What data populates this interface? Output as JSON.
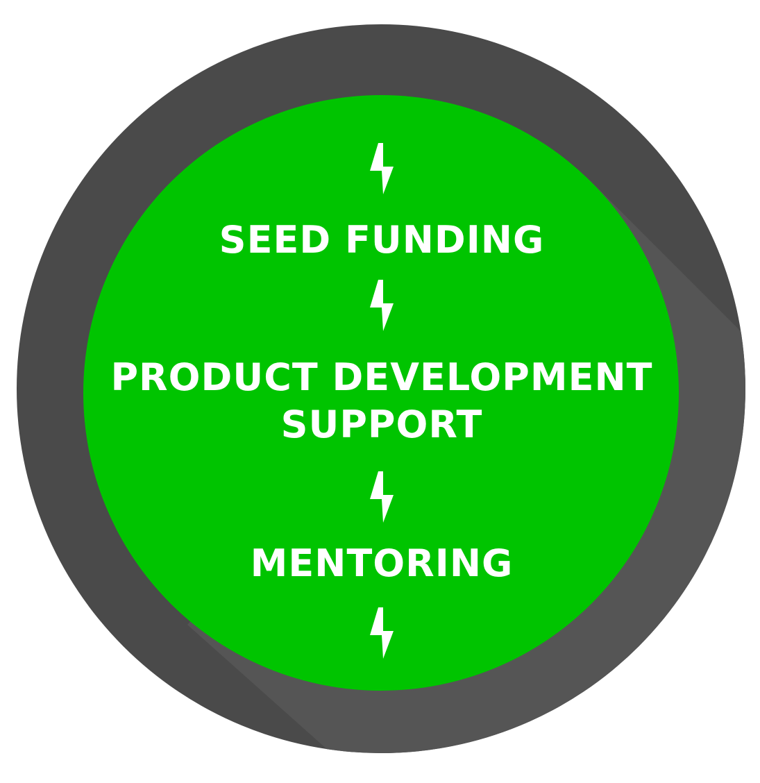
{
  "diagram": {
    "items": [
      {
        "lines": [
          "SEED FUNDING"
        ]
      },
      {
        "lines": [
          "PRODUCT DEVELOPMENT",
          "SUPPORT"
        ]
      },
      {
        "lines": [
          "MENTORING"
        ]
      }
    ],
    "icon": "lightning-bolt-icon",
    "colors": {
      "outer_ring": "#4a4a4a",
      "ring_shadow": "#555555",
      "inner_circle": "#00c400",
      "text": "#ffffff",
      "background": "#ffffff"
    }
  }
}
